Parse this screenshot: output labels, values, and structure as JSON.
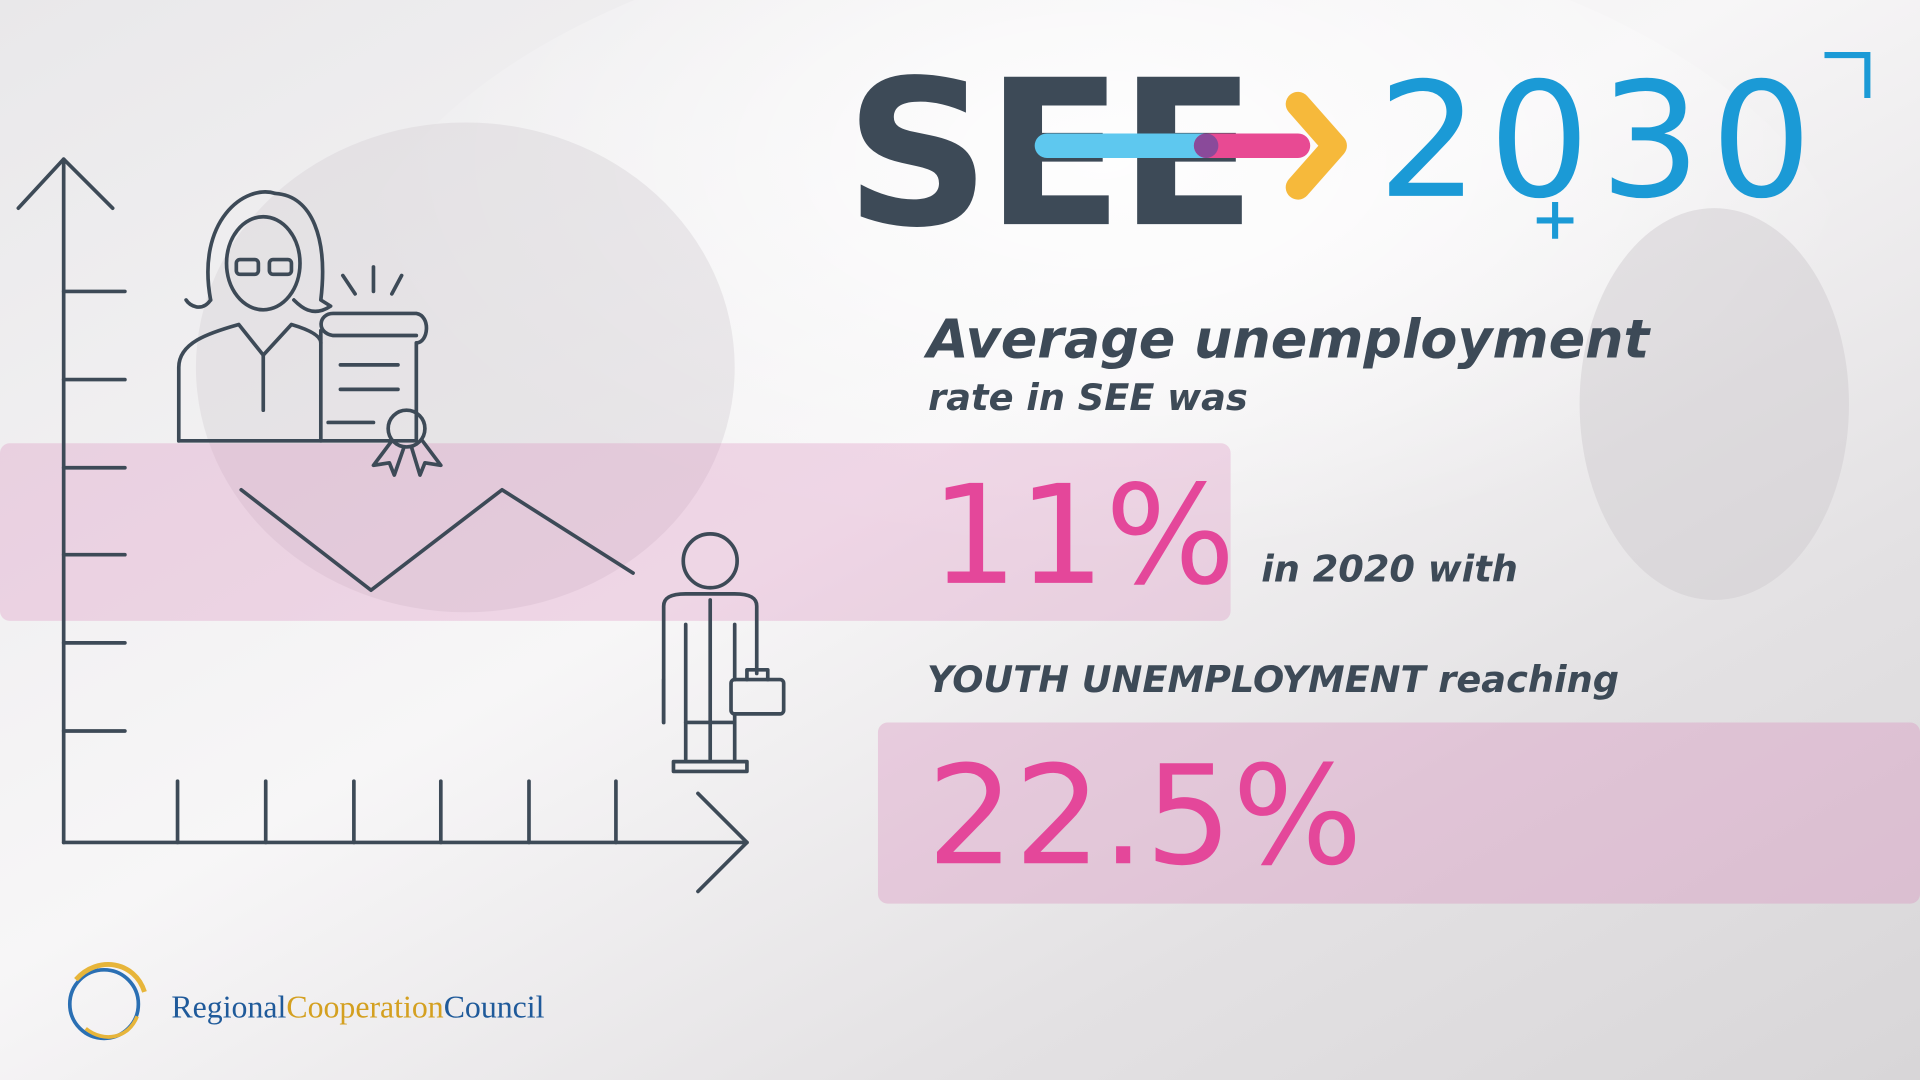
{
  "logo": {
    "see": "SEE",
    "year": "2030"
  },
  "headline": {
    "line1": "Average unemployment",
    "line2": "rate in SEE was"
  },
  "stat1": {
    "value": "11%",
    "suffix": "in 2020 with"
  },
  "stat2": {
    "label": "YOUTH UNEMPLOYMENT reaching",
    "value": "22.5%"
  },
  "footer": {
    "org_parts": [
      "Regional",
      "Cooperation",
      "Council"
    ]
  }
}
